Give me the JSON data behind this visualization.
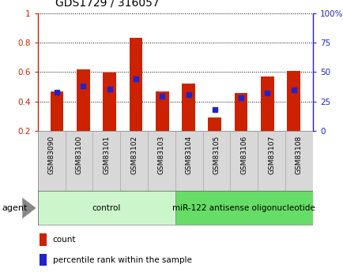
{
  "title": "GDS1729 / 316057",
  "categories": [
    "GSM83090",
    "GSM83100",
    "GSM83101",
    "GSM83102",
    "GSM83103",
    "GSM83104",
    "GSM83105",
    "GSM83106",
    "GSM83107",
    "GSM83108"
  ],
  "red_values": [
    0.47,
    0.62,
    0.595,
    0.835,
    0.47,
    0.52,
    0.29,
    0.455,
    0.57,
    0.605
  ],
  "blue_values": [
    0.46,
    0.505,
    0.485,
    0.555,
    0.435,
    0.445,
    0.345,
    0.425,
    0.455,
    0.48
  ],
  "ylim_left": [
    0.2,
    1.0
  ],
  "ylim_right": [
    0,
    100
  ],
  "yticks_left": [
    0.2,
    0.4,
    0.6,
    0.8,
    1.0
  ],
  "ytick_labels_left": [
    "0.2",
    "0.4",
    "0.6",
    "0.8",
    "1"
  ],
  "yticks_right": [
    0,
    25,
    50,
    75,
    100
  ],
  "ytick_labels_right": [
    "0",
    "25",
    "50",
    "75",
    "100%"
  ],
  "left_color": "#cc2200",
  "right_color": "#2222cc",
  "bar_color": "#cc2200",
  "dot_color": "#2222cc",
  "agent_groups": [
    {
      "label": "control",
      "start": 0,
      "end": 4,
      "color": "#ccf5cc"
    },
    {
      "label": "miR-122 antisense oligonucleotide",
      "start": 5,
      "end": 9,
      "color": "#66dd66"
    }
  ],
  "legend_count_color": "#cc2200",
  "legend_dot_color": "#2222cc",
  "legend_count_label": "count",
  "legend_dot_label": "percentile rank within the sample",
  "bar_width": 0.5,
  "bar_bottom": 0.2,
  "agent_label": "agent",
  "label_bg_color": "#d8d8d8",
  "plot_bg_color": "#ffffff"
}
